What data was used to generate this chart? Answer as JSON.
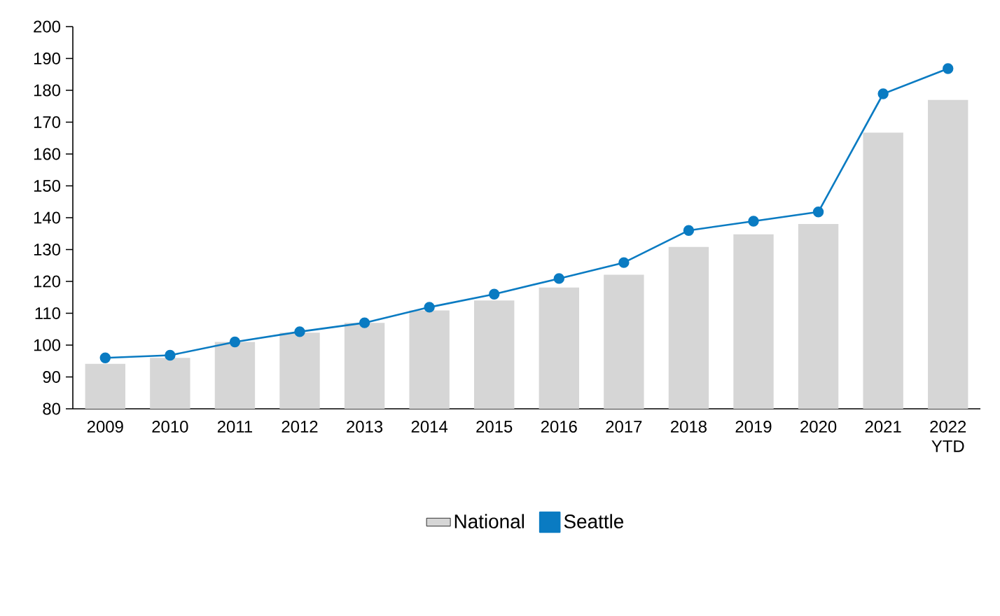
{
  "chart_data": {
    "type": "bar",
    "categories": [
      "2009",
      "2010",
      "2011",
      "2012",
      "2013",
      "2014",
      "2015",
      "2016",
      "2017",
      "2018",
      "2019",
      "2020",
      "2021",
      "2022 YTD"
    ],
    "series": [
      {
        "name": "National",
        "color": "#d6d6d6",
        "values": [
          94.1,
          96.0,
          101.0,
          103.9,
          107.0,
          110.9,
          114.0,
          118.1,
          122.1,
          130.8,
          134.8,
          138.0,
          166.7,
          177.0
        ]
      },
      {
        "name": "Seattle",
        "type": "line",
        "color": "#0a7bc2",
        "values": [
          96.0,
          96.8,
          101.0,
          104.2,
          107.0,
          111.9,
          116.0,
          120.9,
          125.9,
          136.0,
          138.9,
          141.8,
          178.9,
          186.8
        ]
      }
    ],
    "ylim": [
      80,
      200
    ],
    "yticks": [
      80,
      90,
      100,
      110,
      120,
      130,
      140,
      150,
      160,
      170,
      180,
      190,
      200
    ],
    "marker": "circle",
    "legend": "bottom"
  }
}
